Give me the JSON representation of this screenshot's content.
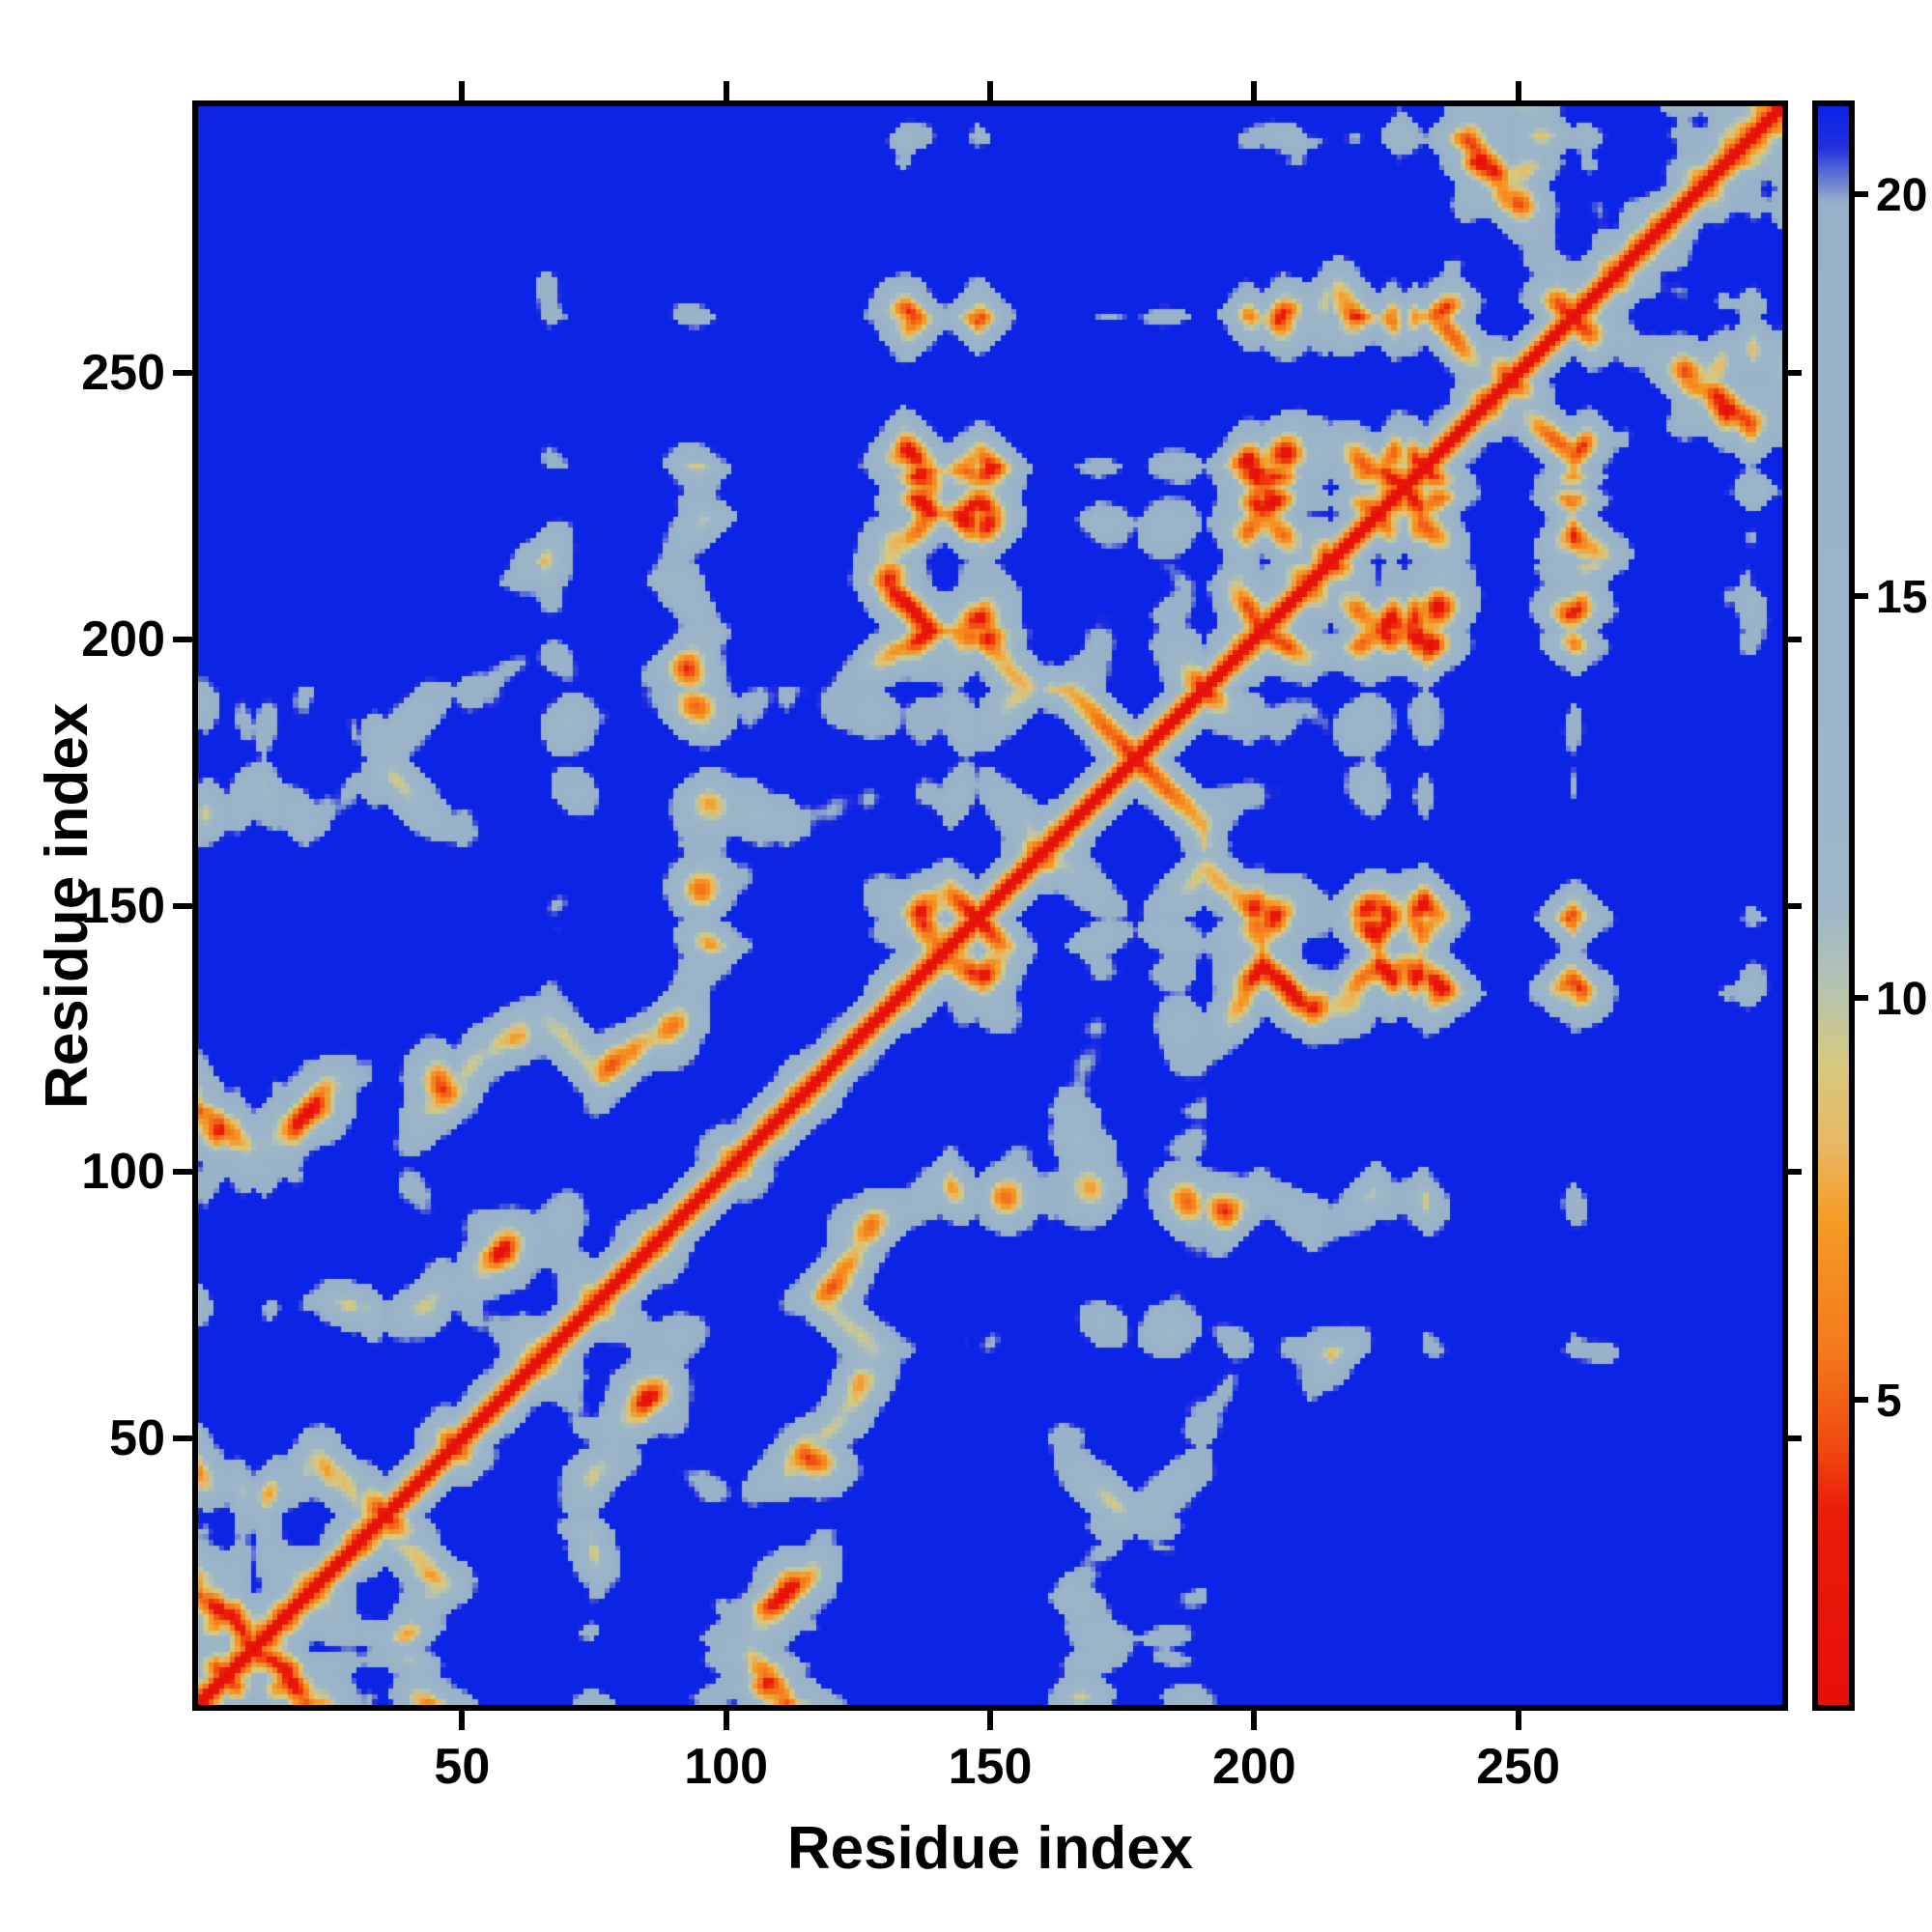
{
  "figure": {
    "background": "#ffffff",
    "axis_color": "#000000"
  },
  "chart_data": {
    "type": "heatmap",
    "title": "",
    "xlabel": "Residue index",
    "ylabel": "Residue index",
    "x_ticks": [
      50,
      100,
      150,
      200,
      250
    ],
    "y_ticks": [
      50,
      100,
      150,
      200,
      250
    ],
    "axis_min": 1,
    "axis_max": 300,
    "n_residues": 300,
    "y_axis_origin": "bottom-left",
    "colorbar": {
      "ticks": [
        5,
        10,
        15,
        20
      ],
      "vmin": 1.2,
      "vmax": 21.1
    },
    "colormap": {
      "background_over": "#0b24e6",
      "stops": [
        [
          1.2,
          "#e60f0a"
        ],
        [
          3.6,
          "#ea1c09"
        ],
        [
          4.4,
          "#f04a10"
        ],
        [
          5.6,
          "#f5791c"
        ],
        [
          7.2,
          "#f59b24"
        ],
        [
          8.2,
          "#e8b863"
        ],
        [
          9.2,
          "#d5c97e"
        ],
        [
          10.2,
          "#b3c2b4"
        ],
        [
          11.2,
          "#9db6c8"
        ],
        [
          19.9,
          "#97b1c9"
        ],
        [
          20.6,
          "#2330de"
        ],
        [
          21.1,
          "#0b24e6"
        ]
      ]
    },
    "generator": {
      "seed": 7,
      "step": 2.7,
      "segment_min": 7,
      "segment_max": 19,
      "contact_cutoff": 20.5,
      "domains": [
        {
          "start": 1,
          "end": 190,
          "center": [
            0,
            0,
            0
          ],
          "radius": 19
        },
        {
          "start": 191,
          "end": 232,
          "center": [
            20,
            8,
            3
          ],
          "radius": 9
        },
        {
          "start": 233,
          "end": 300,
          "center": [
            34,
            13,
            5
          ],
          "radius": 13
        }
      ]
    }
  }
}
